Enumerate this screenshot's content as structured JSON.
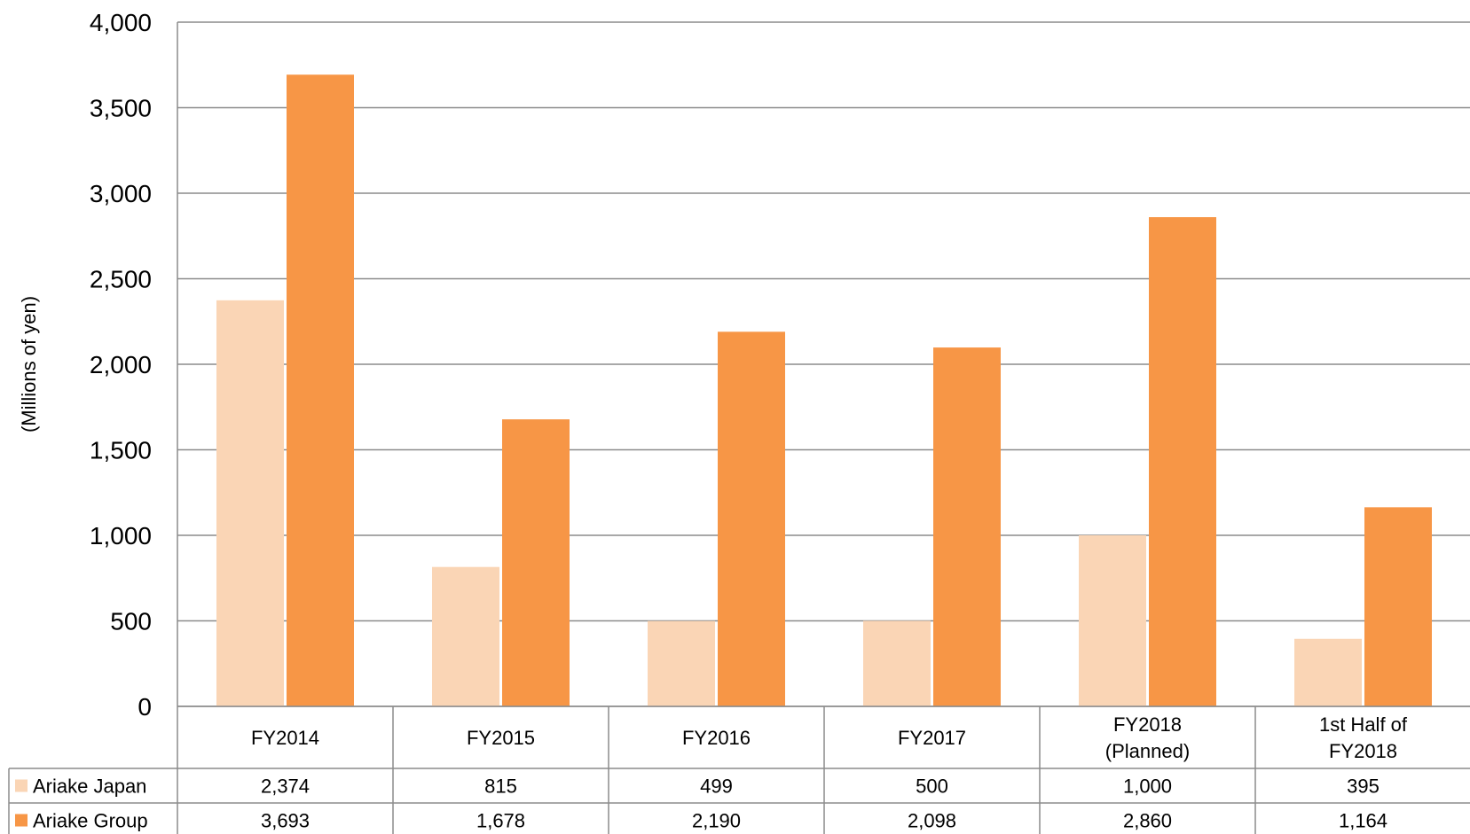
{
  "chart_data": {
    "type": "bar",
    "ylabel": "(Millions of yen)",
    "ylim": [
      0,
      4000
    ],
    "yticks": [
      "0",
      "500",
      "1,000",
      "1,500",
      "2,000",
      "2,500",
      "3,000",
      "3,500",
      "4,000"
    ],
    "ytick_values": [
      0,
      500,
      1000,
      1500,
      2000,
      2500,
      3000,
      3500,
      4000
    ],
    "categories": [
      [
        "FY2014"
      ],
      [
        "FY2015"
      ],
      [
        "FY2016"
      ],
      [
        "FY2017"
      ],
      [
        "FY2018",
        "(Planned)"
      ],
      [
        "1st Half of",
        "FY2018"
      ]
    ],
    "grid": true,
    "legend": "data-table",
    "series": [
      {
        "name": "Ariake Japan",
        "color": "#fad5b5",
        "values": [
          2374,
          815,
          499,
          500,
          1000,
          395
        ],
        "labels": [
          "2,374",
          "815",
          "499",
          "500",
          "1,000",
          "395"
        ]
      },
      {
        "name": "Ariake Group",
        "color": "#f79646",
        "values": [
          3693,
          1678,
          2190,
          2098,
          2860,
          1164
        ],
        "labels": [
          "3,693",
          "1,678",
          "2,190",
          "2,098",
          "2,860",
          "1,164"
        ]
      }
    ]
  }
}
